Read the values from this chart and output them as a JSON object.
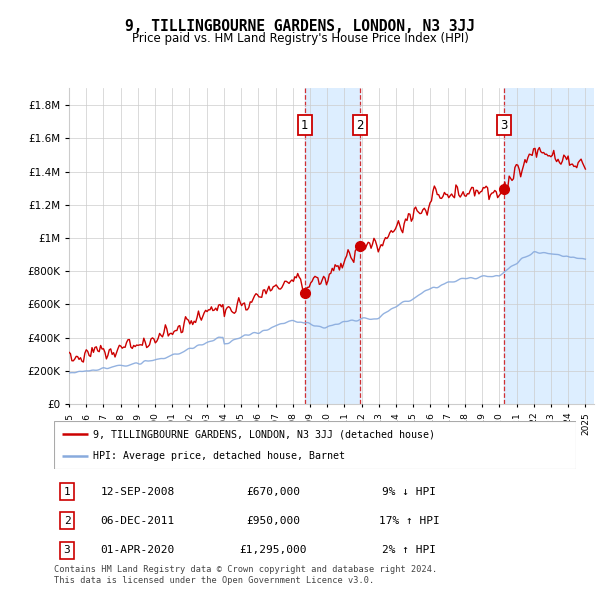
{
  "title": "9, TILLINGBOURNE GARDENS, LONDON, N3 3JJ",
  "subtitle": "Price paid vs. HM Land Registry's House Price Index (HPI)",
  "ytick_values": [
    0,
    200000,
    400000,
    600000,
    800000,
    1000000,
    1200000,
    1400000,
    1600000,
    1800000
  ],
  "ylim": [
    0,
    1900000
  ],
  "xlim_start": 1995.0,
  "xlim_end": 2025.5,
  "transactions": [
    {
      "date": 2008.7,
      "price": 670000,
      "label": "1"
    },
    {
      "date": 2011.92,
      "price": 950000,
      "label": "2"
    },
    {
      "date": 2020.25,
      "price": 1295000,
      "label": "3"
    }
  ],
  "transaction_details": [
    {
      "label": "1",
      "date": "12-SEP-2008",
      "price": "£670,000",
      "pct": "9% ↓ HPI"
    },
    {
      "label": "2",
      "date": "06-DEC-2011",
      "price": "£950,000",
      "pct": "17% ↑ HPI"
    },
    {
      "label": "3",
      "date": "01-APR-2020",
      "price": "£1,295,000",
      "pct": "2% ↑ HPI"
    }
  ],
  "legend_line1": "9, TILLINGBOURNE GARDENS, LONDON, N3 3JJ (detached house)",
  "legend_line2": "HPI: Average price, detached house, Barnet",
  "footer": "Contains HM Land Registry data © Crown copyright and database right 2024.\nThis data is licensed under the Open Government Licence v3.0.",
  "red_color": "#cc0000",
  "blue_color": "#88aadd",
  "shade_color": "#ddeeff",
  "background_color": "#ffffff",
  "grid_color": "#cccccc"
}
